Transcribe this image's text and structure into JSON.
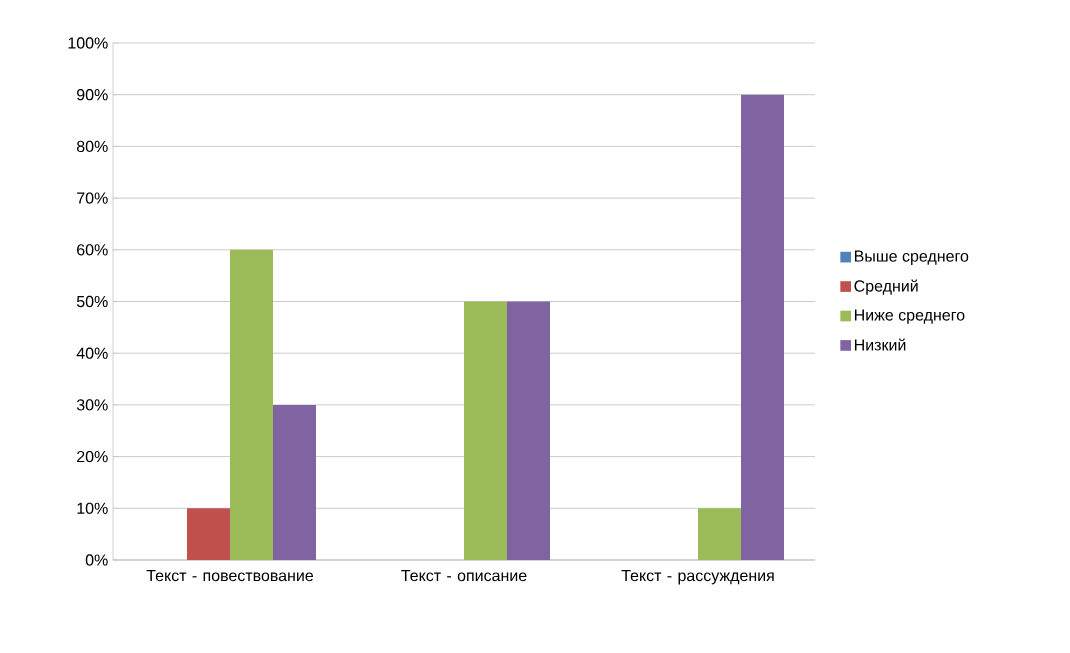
{
  "chart_data": {
    "type": "bar",
    "categories": [
      "Текст - повествование",
      "Текст - описание",
      "Текст - рассуждения"
    ],
    "series": [
      {
        "name": "Выше среднего",
        "color": "#4f81bd",
        "values": [
          0,
          0,
          0
        ]
      },
      {
        "name": "Средний",
        "color": "#c0504d",
        "values": [
          10,
          0,
          0
        ]
      },
      {
        "name": "Ниже среднего",
        "color": "#9bbb59",
        "values": [
          60,
          50,
          10
        ]
      },
      {
        "name": "Низкий",
        "color": "#8064a2",
        "values": [
          30,
          50,
          90
        ]
      }
    ],
    "ylim": [
      0,
      100
    ],
    "yticks": [
      {
        "value": 0,
        "label": "0%"
      },
      {
        "value": 10,
        "label": "10%"
      },
      {
        "value": 20,
        "label": "20%"
      },
      {
        "value": 30,
        "label": "30%"
      },
      {
        "value": 40,
        "label": "40%"
      },
      {
        "value": 50,
        "label": "50%"
      },
      {
        "value": 60,
        "label": "60%"
      },
      {
        "value": 70,
        "label": "70%"
      },
      {
        "value": 80,
        "label": "80%"
      },
      {
        "value": 90,
        "label": "90%"
      },
      {
        "value": 100,
        "label": "100%"
      }
    ],
    "grid": "y",
    "legend": "right"
  }
}
